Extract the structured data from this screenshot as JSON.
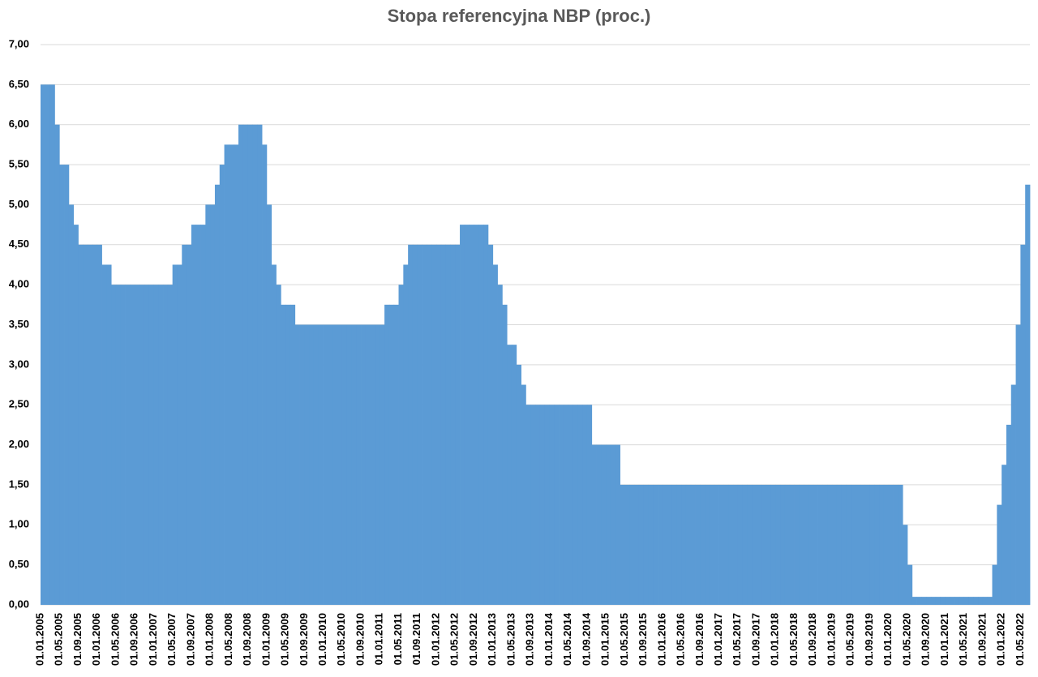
{
  "chart_data": {
    "type": "area",
    "title": "Stopa referencyjna NBP (proc.)",
    "color": "#5b9bd5",
    "grid": true,
    "ylim": [
      0,
      7
    ],
    "yticks": [
      {
        "value": 0,
        "label": "0,00"
      },
      {
        "value": 0.5,
        "label": "0,50"
      },
      {
        "value": 1,
        "label": "1,00"
      },
      {
        "value": 1.5,
        "label": "1,50"
      },
      {
        "value": 2,
        "label": "2,00"
      },
      {
        "value": 2.5,
        "label": "2,50"
      },
      {
        "value": 3,
        "label": "3,00"
      },
      {
        "value": 3.5,
        "label": "3,50"
      },
      {
        "value": 4,
        "label": "4,00"
      },
      {
        "value": 4.5,
        "label": "4,50"
      },
      {
        "value": 5,
        "label": "5,00"
      },
      {
        "value": 5.5,
        "label": "5,50"
      },
      {
        "value": 6,
        "label": "6,00"
      },
      {
        "value": 6.5,
        "label": "6,50"
      },
      {
        "value": 7,
        "label": "7,00"
      }
    ],
    "categories": [
      "01.01.2005",
      null,
      null,
      null,
      "01.05.2005",
      null,
      null,
      null,
      "01.09.2005",
      null,
      null,
      null,
      "01.01.2006",
      null,
      null,
      null,
      "01.05.2006",
      null,
      null,
      null,
      "01.09.2006",
      null,
      null,
      null,
      "01.01.2007",
      null,
      null,
      null,
      "01.05.2007",
      null,
      null,
      null,
      "01.09.2007",
      null,
      null,
      null,
      "01.01.2008",
      null,
      null,
      null,
      "01.05.2008",
      null,
      null,
      null,
      "01.09.2008",
      null,
      null,
      null,
      "01.01.2009",
      null,
      null,
      null,
      "01.05.2009",
      null,
      null,
      null,
      "01.09.2009",
      null,
      null,
      null,
      "01.01.2010",
      null,
      null,
      null,
      "01.05.2010",
      null,
      null,
      null,
      "01.09.2010",
      null,
      null,
      null,
      "01.01.2011",
      null,
      null,
      null,
      "01.05.2011",
      null,
      null,
      null,
      "01.09.2011",
      null,
      null,
      null,
      "01.01.2012",
      null,
      null,
      null,
      "01.05.2012",
      null,
      null,
      null,
      "01.09.2012",
      null,
      null,
      null,
      "01.01.2013",
      null,
      null,
      null,
      "01.05.2013",
      null,
      null,
      null,
      "01.09.2013",
      null,
      null,
      null,
      "01.01.2014",
      null,
      null,
      null,
      "01.05.2014",
      null,
      null,
      null,
      "01.09.2014",
      null,
      null,
      null,
      "01.01.2015",
      null,
      null,
      null,
      "01.05.2015",
      null,
      null,
      null,
      "01.09.2015",
      null,
      null,
      null,
      "01.01.2016",
      null,
      null,
      null,
      "01.05.2016",
      null,
      null,
      null,
      "01.09.2016",
      null,
      null,
      null,
      "01.01.2017",
      null,
      null,
      null,
      "01.05.2017",
      null,
      null,
      null,
      "01.09.2017",
      null,
      null,
      null,
      "01.01.2018",
      null,
      null,
      null,
      "01.05.2018",
      null,
      null,
      null,
      "01.09.2018",
      null,
      null,
      null,
      "01.01.2019",
      null,
      null,
      null,
      "01.05.2019",
      null,
      null,
      null,
      "01.09.2019",
      null,
      null,
      null,
      "01.01.2020",
      null,
      null,
      null,
      "01.05.2020",
      null,
      null,
      null,
      "01.09.2020",
      null,
      null,
      null,
      "01.01.2021",
      null,
      null,
      null,
      "01.05.2021",
      null,
      null,
      null,
      "01.09.2021",
      null,
      null,
      null,
      "01.01.2022",
      null,
      null,
      null,
      "01.05.2022",
      null
    ],
    "values": [
      6.5,
      6.5,
      6.5,
      6,
      5.5,
      5.5,
      5,
      4.75,
      4.5,
      4.5,
      4.5,
      4.5,
      4.5,
      4.25,
      4.25,
      4,
      4,
      4,
      4,
      4,
      4,
      4,
      4,
      4,
      4,
      4,
      4,
      4,
      4.25,
      4.25,
      4.5,
      4.5,
      4.75,
      4.75,
      4.75,
      5,
      5,
      5.25,
      5.5,
      5.75,
      5.75,
      5.75,
      6,
      6,
      6,
      6,
      6,
      5.75,
      5,
      4.25,
      4,
      3.75,
      3.75,
      3.75,
      3.5,
      3.5,
      3.5,
      3.5,
      3.5,
      3.5,
      3.5,
      3.5,
      3.5,
      3.5,
      3.5,
      3.5,
      3.5,
      3.5,
      3.5,
      3.5,
      3.5,
      3.5,
      3.5,
      3.75,
      3.75,
      3.75,
      4,
      4.25,
      4.5,
      4.5,
      4.5,
      4.5,
      4.5,
      4.5,
      4.5,
      4.5,
      4.5,
      4.5,
      4.5,
      4.75,
      4.75,
      4.75,
      4.75,
      4.75,
      4.75,
      4.5,
      4.25,
      4,
      3.75,
      3.25,
      3.25,
      3,
      2.75,
      2.5,
      2.5,
      2.5,
      2.5,
      2.5,
      2.5,
      2.5,
      2.5,
      2.5,
      2.5,
      2.5,
      2.5,
      2.5,
      2.5,
      2,
      2,
      2,
      2,
      2,
      2,
      1.5,
      1.5,
      1.5,
      1.5,
      1.5,
      1.5,
      1.5,
      1.5,
      1.5,
      1.5,
      1.5,
      1.5,
      1.5,
      1.5,
      1.5,
      1.5,
      1.5,
      1.5,
      1.5,
      1.5,
      1.5,
      1.5,
      1.5,
      1.5,
      1.5,
      1.5,
      1.5,
      1.5,
      1.5,
      1.5,
      1.5,
      1.5,
      1.5,
      1.5,
      1.5,
      1.5,
      1.5,
      1.5,
      1.5,
      1.5,
      1.5,
      1.5,
      1.5,
      1.5,
      1.5,
      1.5,
      1.5,
      1.5,
      1.5,
      1.5,
      1.5,
      1.5,
      1.5,
      1.5,
      1.5,
      1.5,
      1.5,
      1.5,
      1.5,
      1.5,
      1,
      0.5,
      0.1,
      0.1,
      0.1,
      0.1,
      0.1,
      0.1,
      0.1,
      0.1,
      0.1,
      0.1,
      0.1,
      0.1,
      0.1,
      0.1,
      0.1,
      0.1,
      0.1,
      0.5,
      1.25,
      1.75,
      2.25,
      2.75,
      3.5,
      4.5,
      5.25
    ]
  }
}
